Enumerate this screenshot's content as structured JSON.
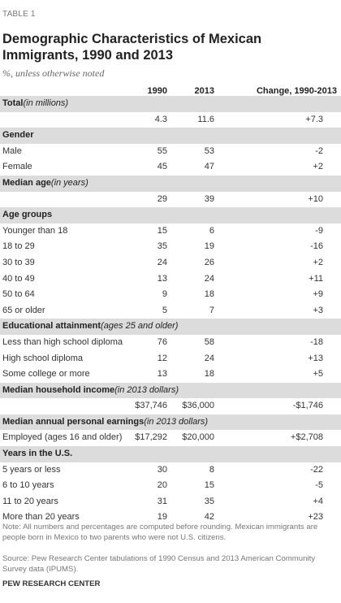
{
  "table_label": "TABLE 1",
  "title": "Demographic Characteristics of Mexican Immigrants, 1990 and 2013",
  "subtitle": "%, unless otherwise noted",
  "columns": [
    "1990",
    "2013",
    "Change, 1990-2013"
  ],
  "rows": [
    {
      "type": "section",
      "label": "Total",
      "note": "(in millions)"
    },
    {
      "type": "data",
      "label": "",
      "values": [
        "4.3",
        "11.6",
        "+7.3"
      ]
    },
    {
      "type": "section",
      "label": "Gender",
      "note": ""
    },
    {
      "type": "data",
      "label": "Male",
      "values": [
        "55",
        "53",
        "-2"
      ]
    },
    {
      "type": "data",
      "label": "Female",
      "values": [
        "45",
        "47",
        "+2"
      ]
    },
    {
      "type": "section",
      "label": "Median age",
      "note": "(in years)"
    },
    {
      "type": "data",
      "label": "",
      "values": [
        "29",
        "39",
        "+10"
      ]
    },
    {
      "type": "section",
      "label": "Age groups",
      "note": ""
    },
    {
      "type": "data",
      "label": "Younger than 18",
      "values": [
        "15",
        "6",
        "-9"
      ]
    },
    {
      "type": "data",
      "label": "18 to 29",
      "values": [
        "35",
        "19",
        "-16"
      ]
    },
    {
      "type": "data",
      "label": "30 to 39",
      "values": [
        "24",
        "26",
        "+2"
      ]
    },
    {
      "type": "data",
      "label": "40 to 49",
      "values": [
        "13",
        "24",
        "+11"
      ]
    },
    {
      "type": "data",
      "label": "50 to 64",
      "values": [
        "9",
        "18",
        "+9"
      ]
    },
    {
      "type": "data",
      "label": "65 or older",
      "values": [
        "5",
        "7",
        "+3"
      ]
    },
    {
      "type": "section",
      "label": "Educational attainment",
      "note": "(ages 25 and older)"
    },
    {
      "type": "data",
      "label": "Less than high school diploma",
      "values": [
        "76",
        "58",
        "-18"
      ]
    },
    {
      "type": "data",
      "label": "High school diploma",
      "values": [
        "12",
        "24",
        "+13"
      ]
    },
    {
      "type": "data",
      "label": "Some college or more",
      "values": [
        "13",
        "18",
        "+5"
      ]
    },
    {
      "type": "section",
      "label": "Median household income",
      "note": "(in 2013 dollars)"
    },
    {
      "type": "data",
      "label": "",
      "values": [
        "$37,746",
        "$36,000",
        "-$1,746"
      ]
    },
    {
      "type": "section",
      "label": "Median annual personal earnings",
      "note": "(in 2013 dollars)"
    },
    {
      "type": "data",
      "label": " Employed (ages 16 and older)",
      "values": [
        "$17,292",
        "$20,000",
        "+$2,708"
      ]
    },
    {
      "type": "section",
      "label": "Years in the U.S.",
      "note": ""
    },
    {
      "type": "data",
      "label": "5 years or less",
      "values": [
        "30",
        "8",
        "-22"
      ]
    },
    {
      "type": "data",
      "label": "6 to 10 years",
      "values": [
        "20",
        "15",
        "-5"
      ]
    },
    {
      "type": "data",
      "label": "11 to 20 years",
      "values": [
        "31",
        "35",
        "+4"
      ]
    },
    {
      "type": "data",
      "label": "More than 20 years",
      "values": [
        "19",
        "42",
        "+23"
      ]
    }
  ],
  "footer": {
    "note": "Note: All numbers and percentages are computed before rounding. Mexican immigrants are people born in Mexico to two parents who were not U.S. citizens.",
    "source": "Source: Pew Research Center tabulations of 1990 Census and 2013 American Community Survey data (IPUMS).",
    "org": "PEW RESEARCH CENTER"
  }
}
